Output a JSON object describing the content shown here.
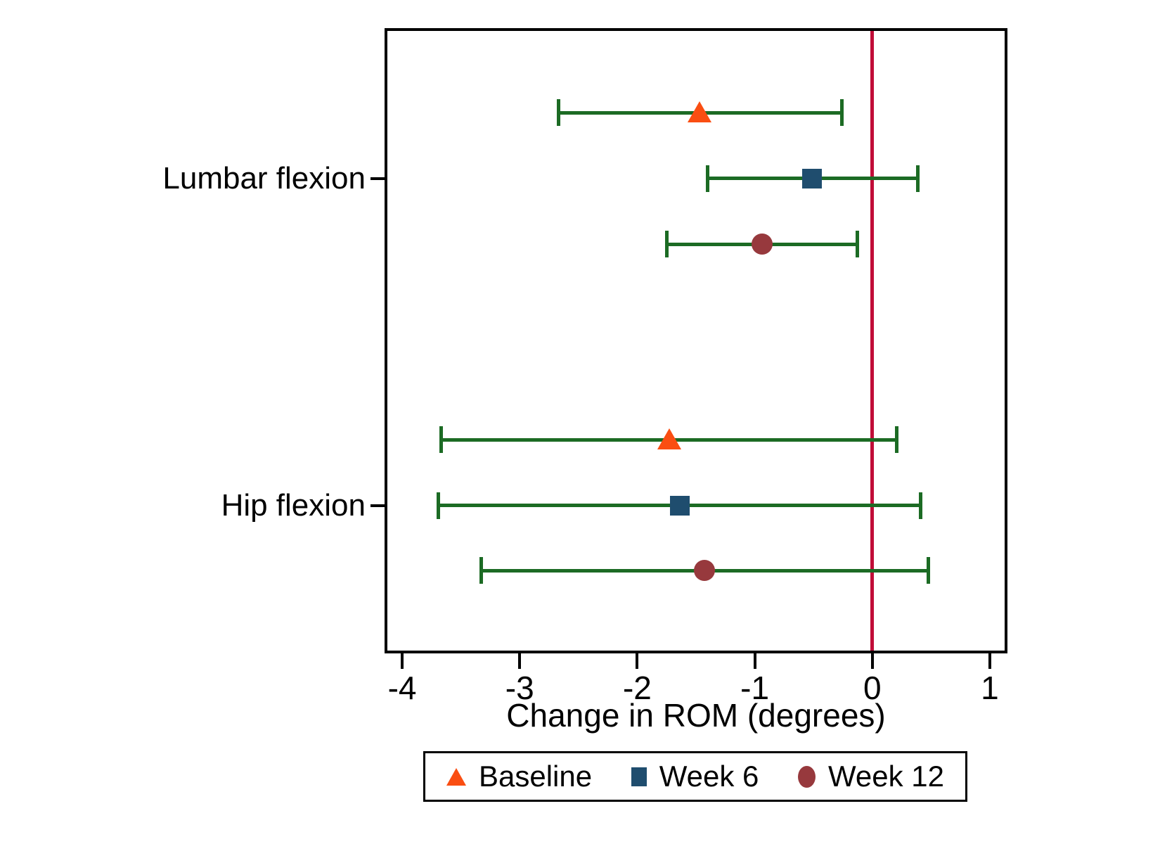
{
  "figure": {
    "background": "#ffffff",
    "frame_color": "#000000",
    "text_color": "#000000"
  },
  "chart_data": {
    "type": "scatter",
    "subtype": "horizontal dot plot with 95% CI error bars (forest-style)",
    "title": "",
    "xlabel": "Change in ROM (degrees)",
    "ylabel": "",
    "xlim": [
      -4.15,
      1.15
    ],
    "xticks": [
      -4,
      -3,
      -2,
      -1,
      0,
      1
    ],
    "categories": [
      "Lumbar flexion",
      "Hip flexion"
    ],
    "grid": false,
    "reference_line_x": 0,
    "reference_line_color": "#C10D38",
    "error_bar_color": "#1C6B24",
    "legend": {
      "position": "bottom",
      "entries": [
        "Baseline",
        "Week 6",
        "Week 12"
      ]
    },
    "series": [
      {
        "name": "Baseline",
        "marker": "triangle",
        "color": "#FA4E12",
        "points": [
          {
            "category": "Lumbar flexion",
            "x": -1.47,
            "ci": [
              -2.67,
              -0.26
            ]
          },
          {
            "category": "Hip flexion",
            "x": -1.73,
            "ci": [
              -3.67,
              0.21
            ]
          }
        ]
      },
      {
        "name": "Week 6",
        "marker": "square",
        "color": "#1F4D6E",
        "points": [
          {
            "category": "Lumbar flexion",
            "x": -0.51,
            "ci": [
              -1.4,
              0.39
            ]
          },
          {
            "category": "Hip flexion",
            "x": -1.64,
            "ci": [
              -3.69,
              0.41
            ]
          }
        ]
      },
      {
        "name": "Week 12",
        "marker": "circle",
        "color": "#97393D",
        "points": [
          {
            "category": "Lumbar flexion",
            "x": -0.94,
            "ci": [
              -1.75,
              -0.13
            ]
          },
          {
            "category": "Hip flexion",
            "x": -1.43,
            "ci": [
              -3.33,
              0.48
            ]
          }
        ]
      }
    ]
  }
}
